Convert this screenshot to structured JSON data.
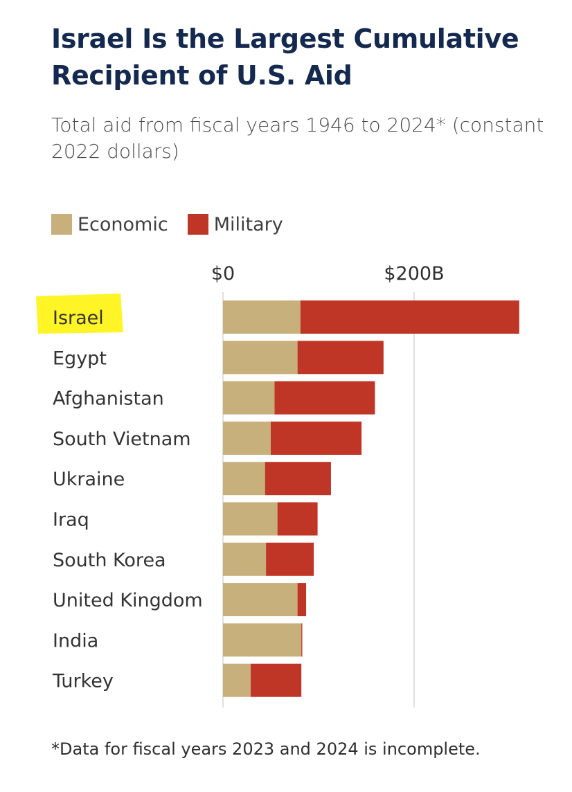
{
  "title": "Israel Is the Largest Cumulative Recipient of U.S. Aid",
  "subtitle": "Total aid from fiscal years 1946 to 2024* (constant 2022 dollars)",
  "footnote": "*Data for fiscal years 2023 and 2024 is incomplete.",
  "legend": [
    {
      "label": "Economic",
      "color": "#c8b07c"
    },
    {
      "label": "Military",
      "color": "#bf3526"
    }
  ],
  "highlight": {
    "category": "Israel",
    "color": "#fff200"
  },
  "chart_data": {
    "type": "bar",
    "orientation": "horizontal",
    "stacked": true,
    "categories": [
      "Israel",
      "Egypt",
      "Afghanistan",
      "South Vietnam",
      "Ukraine",
      "Iraq",
      "South Korea",
      "United Kingdom",
      "India",
      "Turkey"
    ],
    "series": [
      {
        "name": "Economic",
        "color": "#c8b07c",
        "values": [
          81,
          78,
          54,
          50,
          44,
          57,
          45,
          78,
          82,
          29
        ]
      },
      {
        "name": "Military",
        "color": "#bf3526",
        "values": [
          229,
          90,
          105,
          95,
          69,
          42,
          50,
          9,
          1,
          53
        ]
      }
    ],
    "xticks": [
      {
        "value": 0,
        "label": "$0"
      },
      {
        "value": 200,
        "label": "$200B"
      }
    ],
    "xlim": [
      0,
      310
    ],
    "units": "billions of constant 2022 dollars",
    "grid": true,
    "legend_position": "top-left"
  }
}
